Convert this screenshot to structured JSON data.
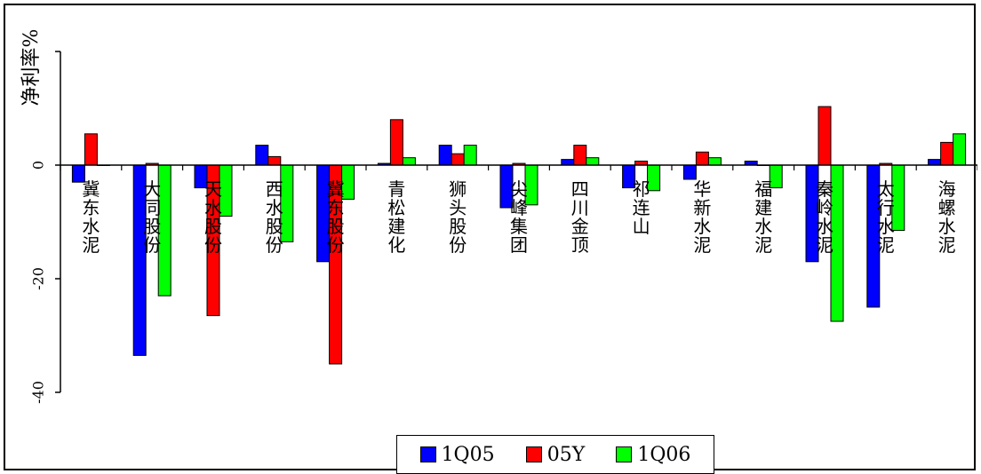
{
  "chart_data": {
    "type": "bar",
    "ylabel": "净利率%",
    "ylim": [
      -40,
      20
    ],
    "yticks": [
      0,
      -20,
      -40
    ],
    "categories": [
      "冀东水泥",
      "大同股份",
      "天水股份",
      "西水股份",
      "冀东股份",
      "青松建化",
      "狮头股份",
      "尖峰集团",
      "四川金顶",
      "祁连山",
      "华新水泥",
      "福建水泥",
      "秦岭水泥",
      "太行水泥",
      "海螺水泥"
    ],
    "series": [
      {
        "name": "1Q05",
        "color": "#0000ff",
        "values": [
          -3,
          -33.5,
          -4,
          3.5,
          -17,
          0.3,
          3.5,
          -7.5,
          1,
          -4,
          -2.5,
          0.7,
          -17,
          -25,
          1
        ]
      },
      {
        "name": "05Y",
        "color": "#ff0000",
        "values": [
          5.5,
          0.3,
          -26.5,
          1.5,
          -35,
          8,
          2,
          0.3,
          3.5,
          0.7,
          2.3,
          0,
          10.3,
          0.3,
          4
        ]
      },
      {
        "name": "1Q06",
        "color": "#00ff00",
        "values": [
          0,
          -23,
          -9,
          -13.5,
          -6,
          1.3,
          3.5,
          -7,
          1.3,
          -4.5,
          1.3,
          -4,
          -27.5,
          -11.5,
          5.5
        ]
      }
    ],
    "grid": false,
    "legend_position": "bottom-center"
  }
}
